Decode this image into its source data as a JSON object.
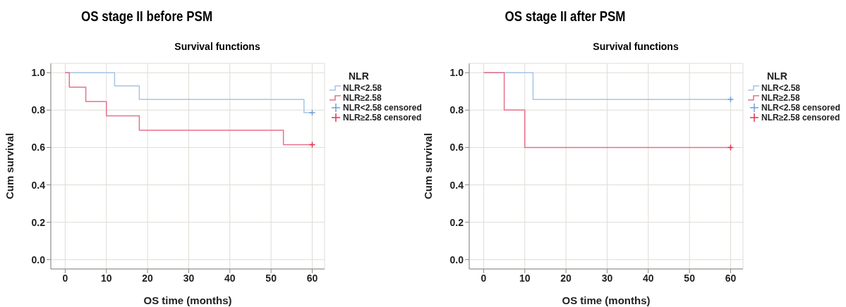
{
  "chart_data": [
    {
      "type": "step",
      "title": "OS stage II before PSM",
      "subtitle": "Survival functions",
      "xlabel": "OS time (months)",
      "ylabel": "Cum survival",
      "legend_title": "NLR",
      "legend": "top right",
      "grid": true,
      "xlim": [
        -3.5,
        63
      ],
      "xticks": [
        0,
        10,
        20,
        30,
        40,
        50,
        60
      ],
      "ylim": [
        -0.05,
        1.05
      ],
      "yticks": [
        {
          "value": 0,
          "label": "0.0"
        },
        {
          "value": 0.2,
          "label": "0.2"
        },
        {
          "value": 0.4,
          "label": "0.4"
        },
        {
          "value": 0.6,
          "label": "0.6"
        },
        {
          "value": 0.8,
          "label": "0.8"
        },
        {
          "value": 1,
          "label": "1.0"
        }
      ],
      "series": [
        {
          "name": "NLR<2.58",
          "color": "#a6c4e8",
          "x": [
            0,
            12,
            18,
            58,
            60
          ],
          "values": [
            1,
            0.929,
            0.857,
            0.786,
            0.786
          ]
        },
        {
          "name": "NLR≥2.58",
          "color": "#e8708a",
          "x": [
            0,
            1,
            5,
            10,
            18,
            53,
            60
          ],
          "values": [
            1,
            0.923,
            0.846,
            0.769,
            0.692,
            0.615,
            0.615
          ]
        },
        {
          "name": "NLR<2.58 censored",
          "type": "scatter",
          "marker": "cross",
          "color": "#6f9fd8",
          "x": [
            60
          ],
          "values": [
            0.786
          ]
        },
        {
          "name": "NLR≥2.58 censored",
          "type": "scatter",
          "marker": "cross",
          "color": "#e8304f",
          "x": [
            60
          ],
          "values": [
            0.615
          ]
        }
      ]
    },
    {
      "type": "step",
      "title": "OS stage II after PSM",
      "subtitle": "Survival functions",
      "xlabel": "OS time (months)",
      "ylabel": "Cum survival",
      "legend_title": "NLR",
      "legend": "top right",
      "grid": true,
      "xlim": [
        -3.5,
        63
      ],
      "xticks": [
        0,
        10,
        20,
        30,
        40,
        50,
        60
      ],
      "ylim": [
        -0.05,
        1.05
      ],
      "yticks": [
        {
          "value": 0,
          "label": "0.0"
        },
        {
          "value": 0.2,
          "label": "0.2"
        },
        {
          "value": 0.4,
          "label": "0.4"
        },
        {
          "value": 0.6,
          "label": "0.6"
        },
        {
          "value": 0.8,
          "label": "0.8"
        },
        {
          "value": 1,
          "label": "1.0"
        }
      ],
      "series": [
        {
          "name": "NLR<2.58",
          "color": "#a6c4e8",
          "x": [
            0,
            12,
            60
          ],
          "values": [
            1,
            0.857,
            0.857
          ]
        },
        {
          "name": "NLR≥2.58",
          "color": "#e8708a",
          "x": [
            0,
            5,
            10,
            60
          ],
          "values": [
            1,
            0.8,
            0.6,
            0.6
          ]
        },
        {
          "name": "NLR<2.58 censored",
          "type": "scatter",
          "marker": "cross",
          "color": "#6f9fd8",
          "x": [
            60
          ],
          "values": [
            0.857
          ]
        },
        {
          "name": "NLR≥2.58 censored",
          "type": "scatter",
          "marker": "cross",
          "color": "#e8304f",
          "x": [
            60
          ],
          "values": [
            0.6
          ]
        }
      ]
    }
  ]
}
